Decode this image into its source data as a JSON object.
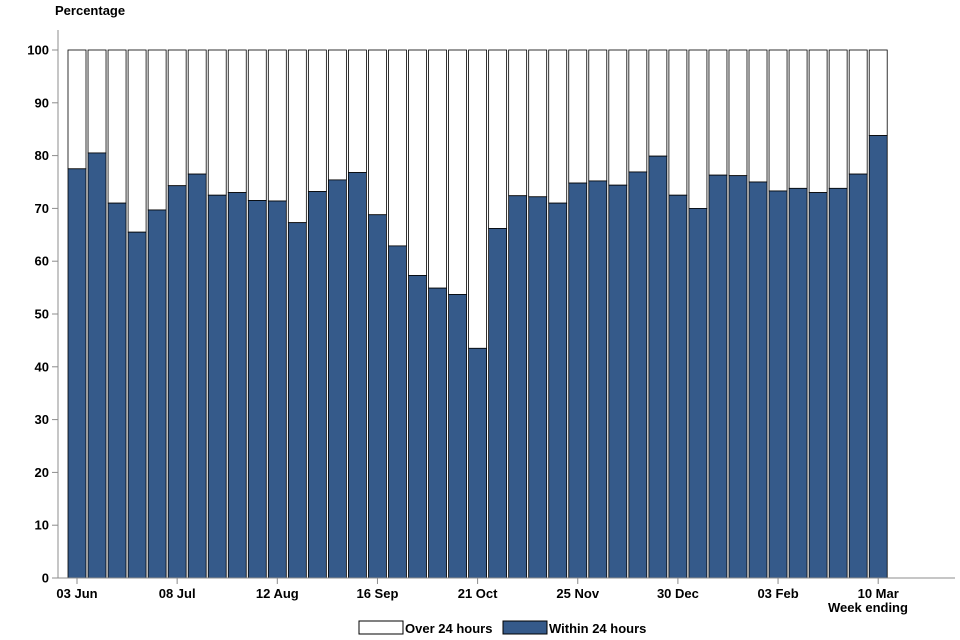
{
  "chart_data": {
    "type": "bar",
    "stacked": true,
    "ylabel": "Percentage",
    "xlabel": "Week ending",
    "ylim": [
      0,
      100
    ],
    "yticks": [
      0,
      10,
      20,
      30,
      40,
      50,
      60,
      70,
      80,
      90,
      100
    ],
    "x_tick_labels": [
      {
        "index": 0,
        "label": "03 Jun"
      },
      {
        "index": 5,
        "label": "08 Jul"
      },
      {
        "index": 10,
        "label": "12 Aug"
      },
      {
        "index": 15,
        "label": "16 Sep"
      },
      {
        "index": 20,
        "label": "21 Oct"
      },
      {
        "index": 25,
        "label": "25 Nov"
      },
      {
        "index": 30,
        "label": "30 Dec"
      },
      {
        "index": 35,
        "label": "03 Feb"
      },
      {
        "index": 40,
        "label": "10 Mar"
      }
    ],
    "series": [
      {
        "name": "Within 24 hours",
        "color": "#355a8a",
        "values": [
          77.5,
          80.5,
          71,
          65.5,
          69.7,
          74.3,
          76.5,
          72.5,
          73,
          71.5,
          71.4,
          67.3,
          73.2,
          75.4,
          76.8,
          68.8,
          62.9,
          57.3,
          54.9,
          53.7,
          43.5,
          66.2,
          72.4,
          72.2,
          71,
          74.8,
          75.2,
          74.4,
          76.9,
          79.9,
          72.5,
          70,
          76.3,
          76.2,
          75,
          73.3,
          73.8,
          73,
          73.8,
          76.5,
          83.8
        ]
      },
      {
        "name": "Over 24 hours",
        "color": "#ffffff",
        "values": [
          22.5,
          19.5,
          29,
          34.5,
          30.3,
          25.7,
          23.5,
          27.5,
          27,
          28.5,
          28.6,
          32.7,
          26.8,
          24.6,
          23.2,
          31.2,
          37.1,
          42.7,
          45.1,
          46.3,
          56.5,
          33.8,
          27.6,
          27.8,
          29,
          25.2,
          24.8,
          25.6,
          23.1,
          20.1,
          27.5,
          30,
          23.7,
          23.8,
          25,
          26.7,
          26.2,
          27,
          26.2,
          23.5,
          16.2
        ]
      }
    ],
    "legend": {
      "position": "bottom",
      "items": [
        "Over 24 hours",
        "Within 24 hours"
      ]
    }
  }
}
